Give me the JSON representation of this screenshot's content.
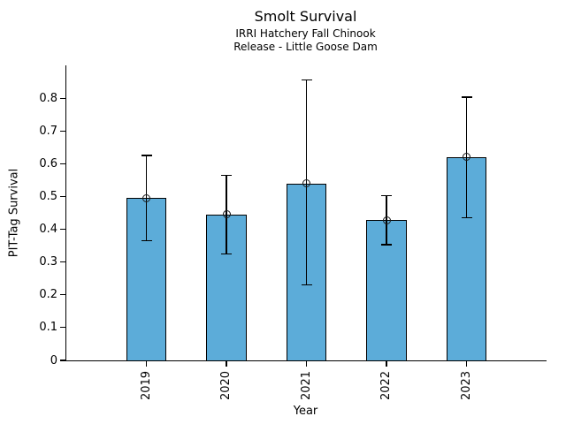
{
  "chart_data": {
    "type": "bar",
    "title": "Smolt Survival",
    "subtitle_lines": [
      "IRRI Hatchery Fall Chinook",
      "Release - Little Goose Dam"
    ],
    "xlabel": "Year",
    "ylabel": "PIT-Tag Survival",
    "categories": [
      "2019",
      "2020",
      "2021",
      "2022",
      "2023"
    ],
    "values": [
      0.495,
      0.445,
      0.54,
      0.428,
      0.62
    ],
    "error_low": [
      0.365,
      0.325,
      0.23,
      0.353,
      0.435
    ],
    "error_high": [
      0.625,
      0.565,
      0.855,
      0.503,
      0.803
    ],
    "y_ticks": [
      0,
      0.1,
      0.2,
      0.3,
      0.4,
      0.5,
      0.6,
      0.7,
      0.8
    ],
    "y_tick_labels": [
      "0",
      "0.1",
      "0.2",
      "0.3",
      "0.4",
      "0.5",
      "0.6",
      "0.7",
      "0.8"
    ],
    "ylim": [
      0,
      0.9
    ],
    "xlim": [
      -1,
      5
    ],
    "bar_width_units": 0.5,
    "grid": false,
    "legend": "none",
    "bar_color": "#5CACD9",
    "bar_edge_color": "#000000",
    "error_color": "#000000",
    "marker": "open-circle"
  }
}
